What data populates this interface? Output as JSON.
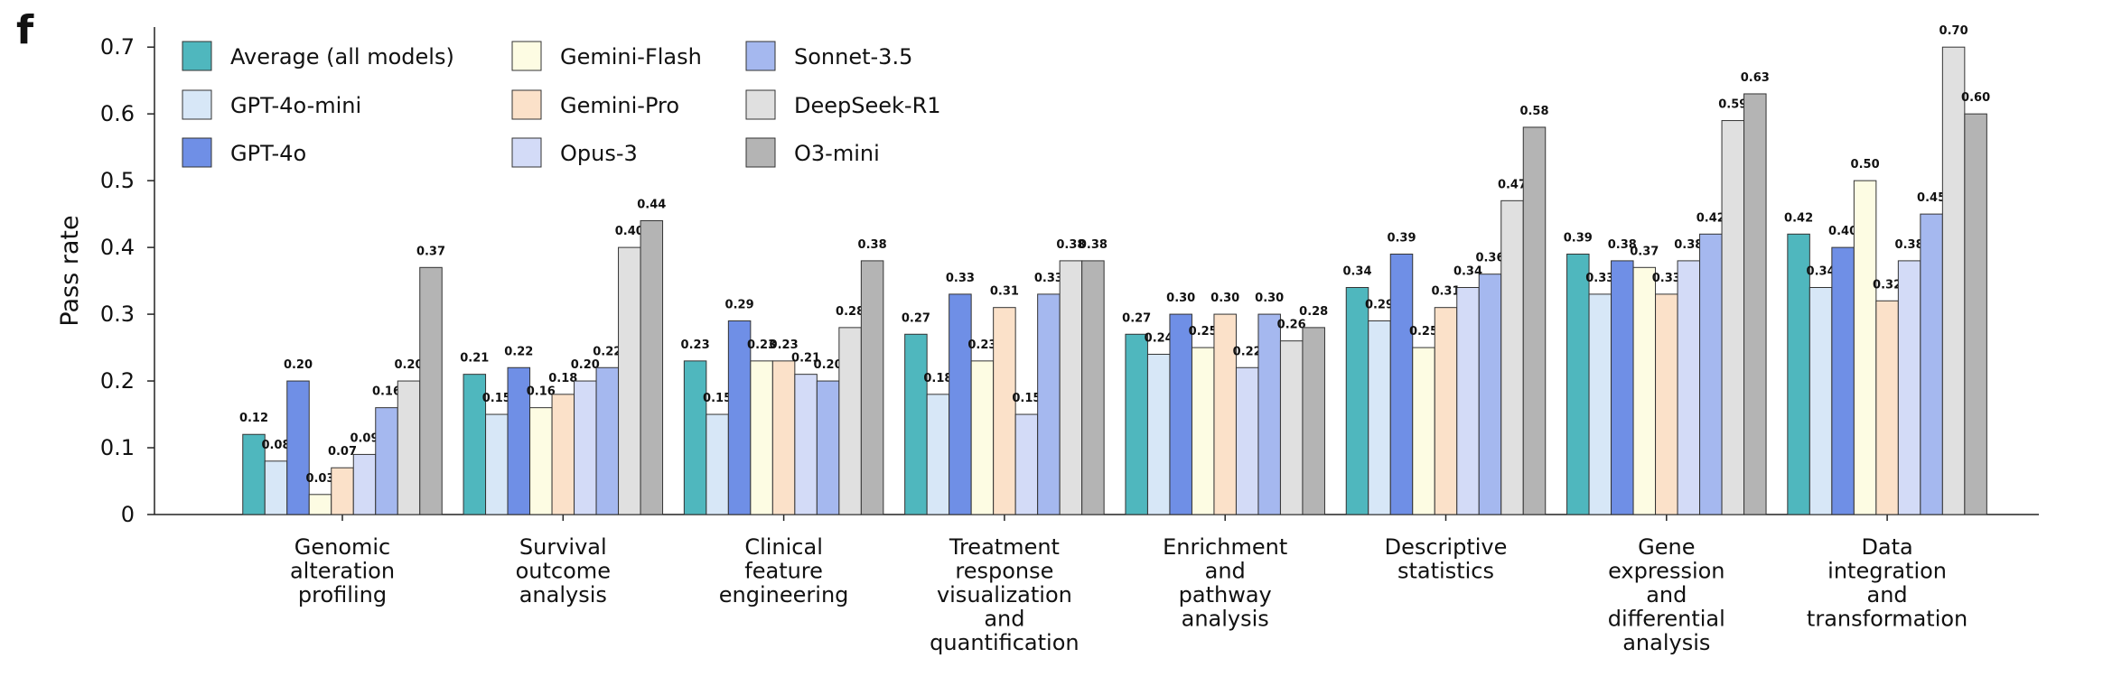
{
  "panel_label": "f",
  "chart_data": {
    "type": "bar",
    "y_label": "Pass rate",
    "categories": [
      "Genomic\nalteration\nprofiling",
      "Survival\noutcome\nanalysis",
      "Clinical\nfeature\nengineering",
      "Treatment\nresponse\nvisualization\nand\nquantification",
      "Enrichment\nand\npathway\nanalysis",
      "Descriptive\nstatistics",
      "Gene\nexpression\nand\ndifferential\nanalysis",
      "Data\nintegration\nand\ntransformation"
    ],
    "series": [
      {
        "name": "Average (all models)",
        "color": "#4fb7be",
        "values": [
          0.12,
          0.21,
          0.23,
          0.27,
          0.27,
          0.34,
          0.39,
          0.42
        ],
        "value_labels": [
          "0.12",
          "0.21",
          "0.23",
          "0.27",
          "0.27",
          "0.34",
          "0.39",
          "0.42"
        ]
      },
      {
        "name": "GPT-4o-mini",
        "color": "#d7e7f7",
        "values": [
          0.08,
          0.15,
          0.15,
          0.18,
          0.24,
          0.29,
          0.33,
          0.34
        ],
        "value_labels": [
          "0.08",
          "0.15",
          "0.15",
          "0.18",
          "0.24",
          "0.29",
          "0.33",
          "0.34"
        ]
      },
      {
        "name": "GPT-4o",
        "color": "#6f8fe6",
        "values": [
          0.2,
          0.22,
          0.29,
          0.33,
          0.3,
          0.39,
          0.38,
          0.4
        ],
        "value_labels": [
          "0.20",
          "0.22",
          "0.29",
          "0.33",
          "0.30",
          "0.39",
          "0.38",
          "0.40"
        ]
      },
      {
        "name": "Gemini-Flash",
        "color": "#fdfce3",
        "values": [
          0.03,
          0.16,
          0.23,
          0.23,
          0.25,
          0.25,
          0.37,
          0.5
        ],
        "value_labels": [
          "0.03",
          "0.16",
          "0.23",
          "0.23",
          "0.25",
          "0.25",
          "0.37",
          "0.50"
        ]
      },
      {
        "name": "Gemini-Pro",
        "color": "#fbe1c9",
        "values": [
          0.07,
          0.18,
          0.23,
          0.31,
          0.3,
          0.31,
          0.33,
          0.32
        ],
        "value_labels": [
          "0.07",
          "0.18",
          "0.23",
          "0.31",
          "0.30",
          "0.31",
          "0.33",
          "0.32"
        ]
      },
      {
        "name": "Opus-3",
        "color": "#d3dbf7",
        "values": [
          0.09,
          0.2,
          0.21,
          0.15,
          0.22,
          0.34,
          0.38,
          0.38
        ],
        "value_labels": [
          "0.09",
          "0.20",
          "0.21",
          "0.15",
          "0.22",
          "0.34",
          "0.38",
          "0.38"
        ]
      },
      {
        "name": "Sonnet-3.5",
        "color": "#a5b8ef",
        "values": [
          0.16,
          0.22,
          0.2,
          0.33,
          0.3,
          0.36,
          0.42,
          0.45
        ],
        "value_labels": [
          "0.16",
          "0.22",
          "0.20",
          "0.33",
          "0.30",
          "0.36",
          "0.42",
          "0.45"
        ]
      },
      {
        "name": "DeepSeek-R1",
        "color": "#e0e0e0",
        "values": [
          0.2,
          0.4,
          0.28,
          0.38,
          0.26,
          0.47,
          0.59,
          0.7
        ],
        "value_labels": [
          "0.20",
          "0.40",
          "0.28",
          "0.38",
          "0.26",
          "0.47",
          "0.59",
          "0.70"
        ]
      },
      {
        "name": "O3-mini",
        "color": "#b4b4b4",
        "values": [
          0.37,
          0.44,
          0.38,
          0.38,
          0.28,
          0.58,
          0.63,
          0.6
        ],
        "value_labels": [
          "0.37",
          "0.44",
          "0.38",
          "0.38",
          "0.28",
          "0.58",
          "0.63",
          "0.60"
        ]
      }
    ],
    "ylim": [
      0,
      0.73
    ],
    "yticks": [
      0,
      0.1,
      0.2,
      0.3,
      0.4,
      0.5,
      0.6,
      0.7
    ],
    "grid": false
  }
}
